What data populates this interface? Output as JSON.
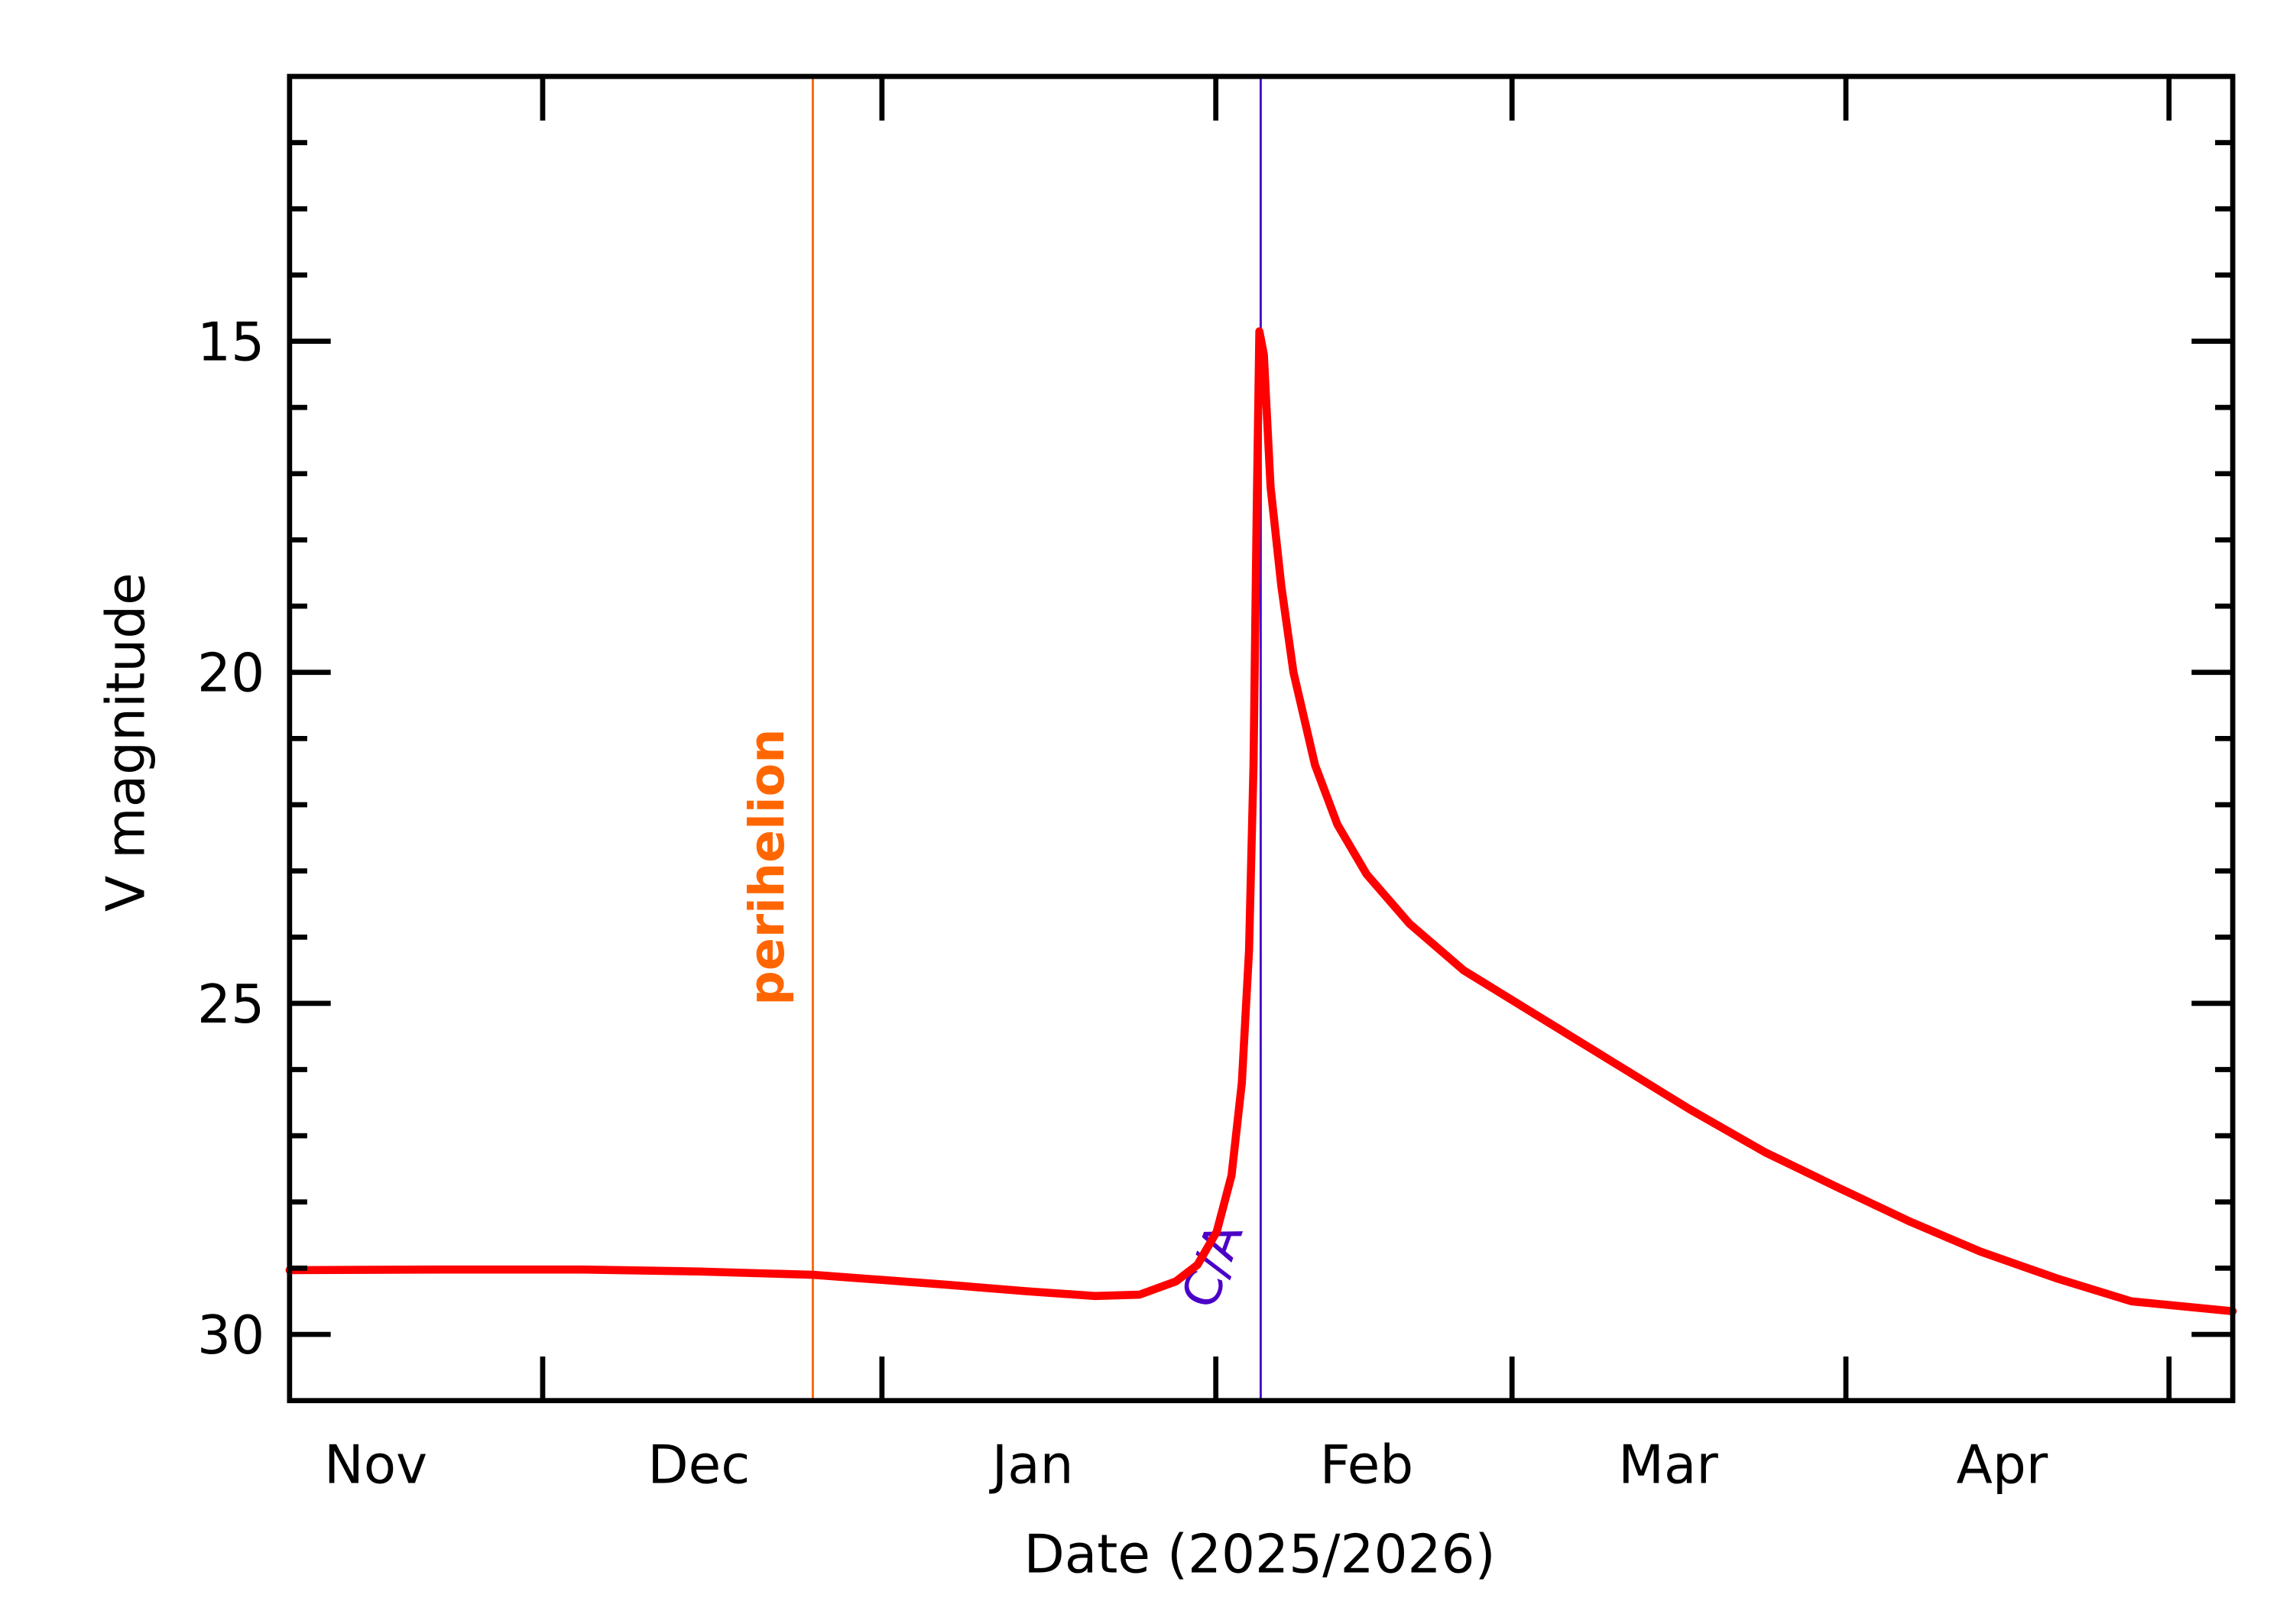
{
  "chart_data": {
    "type": "line",
    "title": "",
    "xlabel": "Date (2025/2026)",
    "ylabel": "V magnitude",
    "x_type": "date",
    "xlim": [
      "2025-10-24T00:00",
      "2026-04-22T10:00"
    ],
    "ylim": [
      31,
      11
    ],
    "y_inverted": true,
    "grid": false,
    "x_tick_labels": [
      {
        "label": "Nov",
        "date": "2025-11-01T00:00"
      },
      {
        "label": "Dec",
        "date": "2025-12-01T00:00"
      },
      {
        "label": "Jan",
        "date": "2026-01-01T00:00"
      },
      {
        "label": "Feb",
        "date": "2026-02-01T00:00"
      },
      {
        "label": "Mar",
        "date": "2026-03-01T00:00"
      },
      {
        "label": "Apr",
        "date": "2026-04-01T00:00"
      }
    ],
    "x_major_ticks": [
      "2025-11-16T12:00",
      "2025-12-18T00:00",
      "2026-01-18T00:00",
      "2026-02-14T12:00",
      "2026-03-17T12:00",
      "2026-04-16T12:00"
    ],
    "y_major_ticks": [
      15,
      20,
      25,
      30
    ],
    "y_tick_labels": [
      "15",
      "20",
      "25",
      "30"
    ],
    "y_minor_step": 1,
    "series": [
      {
        "color": "#ff0000",
        "points": [
          [
            "2025-10-24T00:00",
            29.03
          ],
          [
            "2025-11-07T00:00",
            29.02
          ],
          [
            "2025-11-20T00:00",
            29.02
          ],
          [
            "2025-12-01T00:00",
            29.05
          ],
          [
            "2025-12-11T14:00",
            29.1
          ],
          [
            "2025-12-24T00:00",
            29.25
          ],
          [
            "2025-12-31T14:00",
            29.35
          ],
          [
            "2026-01-06T19:00",
            29.42
          ],
          [
            "2026-01-10T22:00",
            29.4
          ],
          [
            "2026-01-14T07:00",
            29.2
          ],
          [
            "2026-01-16T07:00",
            28.95
          ],
          [
            "2026-01-18T02:00",
            28.45
          ],
          [
            "2026-01-19T11:00",
            27.6
          ],
          [
            "2026-01-20T10:00",
            26.2
          ],
          [
            "2026-01-21T02:00",
            24.2
          ],
          [
            "2026-01-21T12:00",
            21.4
          ],
          [
            "2026-01-21T19:00",
            17.6
          ],
          [
            "2026-01-22T01:00",
            14.85
          ],
          [
            "2026-01-22T11:00",
            15.2
          ],
          [
            "2026-01-23T02:00",
            17.2
          ],
          [
            "2026-01-24T02:00",
            18.7
          ],
          [
            "2026-01-25T05:00",
            20.0
          ],
          [
            "2026-01-27T05:00",
            21.4
          ],
          [
            "2026-01-29T07:00",
            22.3
          ],
          [
            "2026-02-01T00:00",
            23.05
          ],
          [
            "2026-02-05T00:00",
            23.8
          ],
          [
            "2026-02-10T00:00",
            24.5
          ],
          [
            "2026-02-17T00:00",
            25.2
          ],
          [
            "2026-02-24T00:00",
            25.9
          ],
          [
            "2026-03-03T00:00",
            26.6
          ],
          [
            "2026-03-10T00:00",
            27.25
          ],
          [
            "2026-03-17T00:00",
            27.8
          ],
          [
            "2026-03-23T12:00",
            28.3
          ],
          [
            "2026-03-30T00:00",
            28.75
          ],
          [
            "2026-04-06T00:00",
            29.15
          ],
          [
            "2026-04-13T00:00",
            29.5
          ],
          [
            "2026-04-22T10:00",
            29.65
          ]
        ]
      }
    ],
    "annotations": [
      {
        "label": "perihelion",
        "date": "2025-12-11T14:00",
        "color": "#ff6600"
      },
      {
        "label": "C/A",
        "date": "2026-01-22T04:00",
        "color": "#4b00c8"
      }
    ]
  }
}
